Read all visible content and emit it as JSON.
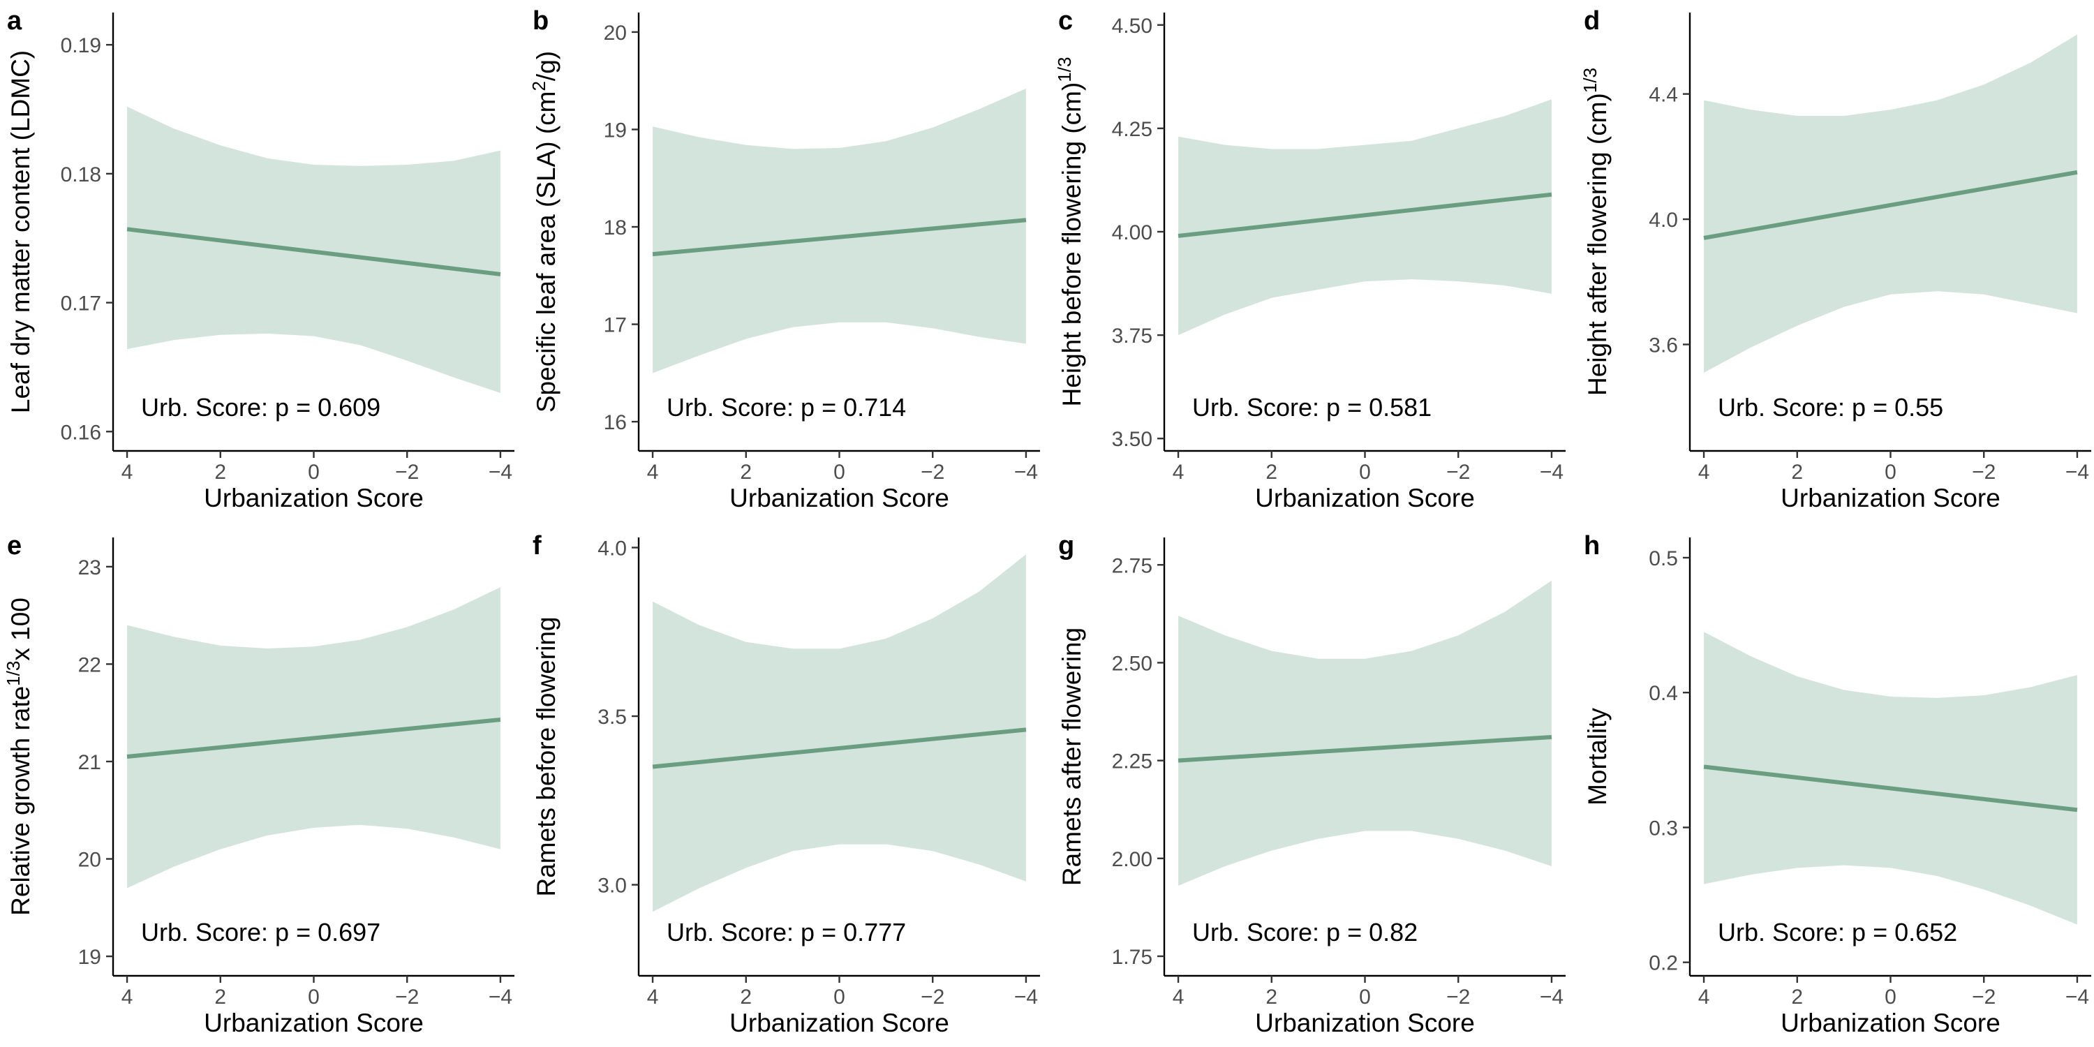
{
  "colors": {
    "line": "#6b9e80",
    "band": "#d3e4dc"
  },
  "chart_data": [
    {
      "type": "line",
      "panel": "a",
      "xlabel": "Urbanization Score",
      "x_reversed": true,
      "xlim": [
        4.3,
        -4.3
      ],
      "xticks": [
        4,
        2,
        0,
        -2,
        -4
      ],
      "xtick_labels": [
        "4",
        "2",
        "0",
        "−2",
        "−4"
      ],
      "ylabel": {
        "text": "Leaf dry matter content (LDMC)"
      },
      "ylim": [
        0.1585,
        0.1925
      ],
      "yticks": [
        0.16,
        0.17,
        0.18,
        0.19
      ],
      "ytick_labels": [
        "0.16",
        "0.17",
        "0.18",
        "0.19"
      ],
      "annotation": "Urb. Score: p = 0.609",
      "fit": {
        "x": [
          4,
          -4
        ],
        "y": [
          0.1757,
          0.1722
        ]
      },
      "ci": {
        "x": [
          4,
          3,
          2,
          1,
          0,
          -1,
          -2,
          -3,
          -4
        ],
        "lower": [
          0.1664,
          0.1671,
          0.1675,
          0.1676,
          0.1674,
          0.1667,
          0.1655,
          0.1642,
          0.163
        ],
        "upper": [
          0.1852,
          0.1835,
          0.1822,
          0.1812,
          0.1807,
          0.1806,
          0.1807,
          0.181,
          0.1818
        ]
      }
    },
    {
      "type": "line",
      "panel": "b",
      "xlabel": "Urbanization Score",
      "x_reversed": true,
      "xlim": [
        4.3,
        -4.3
      ],
      "xticks": [
        4,
        2,
        0,
        -2,
        -4
      ],
      "xtick_labels": [
        "4",
        "2",
        "0",
        "−2",
        "−4"
      ],
      "ylabel": {
        "text": "Specific leaf area (SLA) (cm",
        "sup": "2",
        "after": "/g)"
      },
      "ylim": [
        15.7,
        20.2
      ],
      "yticks": [
        16,
        17,
        18,
        19,
        20
      ],
      "ytick_labels": [
        "16",
        "17",
        "18",
        "19",
        "20"
      ],
      "annotation": "Urb. Score: p = 0.714",
      "fit": {
        "x": [
          4,
          -4
        ],
        "y": [
          17.72,
          18.07
        ]
      },
      "ci": {
        "x": [
          4,
          3,
          2,
          1,
          0,
          -1,
          -2,
          -3,
          -4
        ],
        "lower": [
          16.5,
          16.68,
          16.85,
          16.97,
          17.02,
          17.02,
          16.96,
          16.87,
          16.8
        ],
        "upper": [
          19.03,
          18.92,
          18.84,
          18.8,
          18.81,
          18.88,
          19.02,
          19.21,
          19.42
        ]
      }
    },
    {
      "type": "line",
      "panel": "c",
      "xlabel": "Urbanization Score",
      "x_reversed": true,
      "xlim": [
        4.3,
        -4.3
      ],
      "xticks": [
        4,
        2,
        0,
        -2,
        -4
      ],
      "xtick_labels": [
        "4",
        "2",
        "0",
        "−2",
        "−4"
      ],
      "ylabel": {
        "text": "Height before flowering (cm)",
        "sup": "1/3",
        "after": ""
      },
      "ylim": [
        3.47,
        4.53
      ],
      "yticks": [
        3.5,
        3.75,
        4.0,
        4.25,
        4.5
      ],
      "ytick_labels": [
        "3.50",
        "3.75",
        "4.00",
        "4.25",
        "4.50"
      ],
      "annotation": "Urb. Score: p = 0.581",
      "fit": {
        "x": [
          4,
          -4
        ],
        "y": [
          3.99,
          4.09
        ]
      },
      "ci": {
        "x": [
          4,
          3,
          2,
          1,
          0,
          -1,
          -2,
          -3,
          -4
        ],
        "lower": [
          3.75,
          3.8,
          3.84,
          3.86,
          3.88,
          3.885,
          3.88,
          3.87,
          3.85
        ],
        "upper": [
          4.23,
          4.21,
          4.2,
          4.2,
          4.21,
          4.22,
          4.25,
          4.28,
          4.32
        ]
      }
    },
    {
      "type": "line",
      "panel": "d",
      "xlabel": "Urbanization Score",
      "x_reversed": true,
      "xlim": [
        4.3,
        -4.3
      ],
      "xticks": [
        4,
        2,
        0,
        -2,
        -4
      ],
      "xtick_labels": [
        "4",
        "2",
        "0",
        "−2",
        "−4"
      ],
      "ylabel": {
        "text": "Height after flowering (cm)",
        "sup": "1/3",
        "after": ""
      },
      "ylim": [
        3.26,
        4.66
      ],
      "yticks": [
        3.6,
        4.0,
        4.4
      ],
      "ytick_labels": [
        "3.6",
        "4.0",
        "4.4"
      ],
      "annotation": "Urb. Score: p = 0.55",
      "fit": {
        "x": [
          4,
          -4
        ],
        "y": [
          3.94,
          4.15
        ]
      },
      "ci": {
        "x": [
          4,
          3,
          2,
          1,
          0,
          -1,
          -2,
          -3,
          -4
        ],
        "lower": [
          3.51,
          3.59,
          3.66,
          3.72,
          3.76,
          3.77,
          3.76,
          3.73,
          3.7
        ],
        "upper": [
          4.38,
          4.35,
          4.33,
          4.33,
          4.35,
          4.38,
          4.43,
          4.5,
          4.59
        ]
      }
    },
    {
      "type": "line",
      "panel": "e",
      "xlabel": "Urbanization Score",
      "x_reversed": true,
      "xlim": [
        4.3,
        -4.3
      ],
      "xticks": [
        4,
        2,
        0,
        -2,
        -4
      ],
      "xtick_labels": [
        "4",
        "2",
        "0",
        "−2",
        "−4"
      ],
      "ylabel": {
        "text": "Relative growth rate",
        "sup": "1/3",
        "after": "x 100"
      },
      "ylim": [
        18.8,
        23.3
      ],
      "yticks": [
        19,
        20,
        21,
        22,
        23
      ],
      "ytick_labels": [
        "19",
        "20",
        "21",
        "22",
        "23"
      ],
      "annotation": "Urb. Score: p = 0.697",
      "fit": {
        "x": [
          4,
          -4
        ],
        "y": [
          21.05,
          21.43
        ]
      },
      "ci": {
        "x": [
          4,
          3,
          2,
          1,
          0,
          -1,
          -2,
          -3,
          -4
        ],
        "lower": [
          19.7,
          19.92,
          20.1,
          20.24,
          20.32,
          20.35,
          20.31,
          20.22,
          20.1
        ],
        "upper": [
          22.4,
          22.28,
          22.19,
          22.16,
          22.18,
          22.25,
          22.38,
          22.56,
          22.79
        ]
      }
    },
    {
      "type": "line",
      "panel": "f",
      "xlabel": "Urbanization Score",
      "x_reversed": true,
      "xlim": [
        4.3,
        -4.3
      ],
      "xticks": [
        4,
        2,
        0,
        -2,
        -4
      ],
      "xtick_labels": [
        "4",
        "2",
        "0",
        "−2",
        "−4"
      ],
      "ylabel": {
        "text": "Ramets before flowering"
      },
      "ylim": [
        2.73,
        4.03
      ],
      "yticks": [
        3.0,
        3.5,
        4.0
      ],
      "ytick_labels": [
        "3.0",
        "3.5",
        "4.0"
      ],
      "annotation": "Urb. Score: p = 0.777",
      "fit": {
        "x": [
          4,
          -4
        ],
        "y": [
          3.35,
          3.46
        ]
      },
      "ci": {
        "x": [
          4,
          3,
          2,
          1,
          0,
          -1,
          -2,
          -3,
          -4
        ],
        "lower": [
          2.92,
          2.99,
          3.05,
          3.1,
          3.12,
          3.12,
          3.1,
          3.06,
          3.01
        ],
        "upper": [
          3.84,
          3.77,
          3.72,
          3.7,
          3.7,
          3.73,
          3.79,
          3.87,
          3.98
        ]
      }
    },
    {
      "type": "line",
      "panel": "g",
      "xlabel": "Urbanization Score",
      "x_reversed": true,
      "xlim": [
        4.3,
        -4.3
      ],
      "xticks": [
        4,
        2,
        0,
        -2,
        -4
      ],
      "xtick_labels": [
        "4",
        "2",
        "0",
        "−2",
        "−4"
      ],
      "ylabel": {
        "text": "Ramets after flowering"
      },
      "ylim": [
        1.7,
        2.82
      ],
      "yticks": [
        1.75,
        2.0,
        2.25,
        2.5,
        2.75
      ],
      "ytick_labels": [
        "1.75",
        "2.00",
        "2.25",
        "2.50",
        "2.75"
      ],
      "annotation": "Urb. Score: p = 0.82",
      "fit": {
        "x": [
          4,
          -4
        ],
        "y": [
          2.25,
          2.31
        ]
      },
      "ci": {
        "x": [
          4,
          3,
          2,
          1,
          0,
          -1,
          -2,
          -3,
          -4
        ],
        "lower": [
          1.93,
          1.98,
          2.02,
          2.05,
          2.07,
          2.07,
          2.05,
          2.02,
          1.98
        ],
        "upper": [
          2.62,
          2.57,
          2.53,
          2.51,
          2.51,
          2.53,
          2.57,
          2.63,
          2.71
        ]
      }
    },
    {
      "type": "line",
      "panel": "h",
      "xlabel": "Urbanization Score",
      "x_reversed": true,
      "xlim": [
        4.3,
        -4.3
      ],
      "xticks": [
        4,
        2,
        0,
        -2,
        -4
      ],
      "xtick_labels": [
        "4",
        "2",
        "0",
        "−2",
        "−4"
      ],
      "ylabel": {
        "text": "Mortality"
      },
      "ylim": [
        0.19,
        0.515
      ],
      "yticks": [
        0.2,
        0.3,
        0.4,
        0.5
      ],
      "ytick_labels": [
        "0.2",
        "0.3",
        "0.4",
        "0.5"
      ],
      "annotation": "Urb. Score: p = 0.652",
      "fit": {
        "x": [
          4,
          -4
        ],
        "y": [
          0.345,
          0.313
        ]
      },
      "ci": {
        "x": [
          4,
          3,
          2,
          1,
          0,
          -1,
          -2,
          -3,
          -4
        ],
        "lower": [
          0.258,
          0.265,
          0.27,
          0.272,
          0.27,
          0.264,
          0.254,
          0.242,
          0.228
        ],
        "upper": [
          0.445,
          0.427,
          0.412,
          0.402,
          0.397,
          0.396,
          0.398,
          0.404,
          0.413
        ]
      }
    }
  ]
}
